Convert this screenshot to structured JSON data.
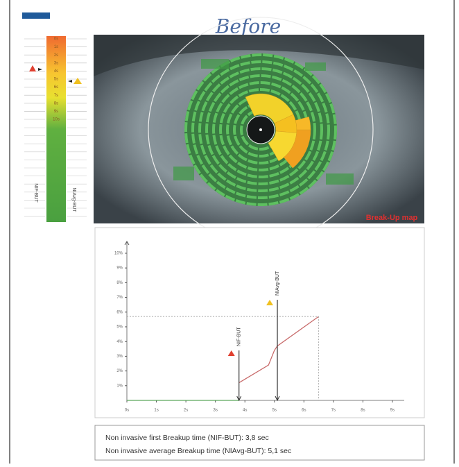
{
  "header": {
    "title": "Before"
  },
  "scale": {
    "labels": [
      "0s",
      "1s",
      "2s",
      "3s",
      "4s",
      "5s",
      "6s",
      "7s",
      "8s",
      "9s",
      "10s"
    ],
    "left_label": "NIF-BUT",
    "right_label": "NIAvg-BUT"
  },
  "map": {
    "label": "Break-Up map"
  },
  "chart_data": {
    "type": "line",
    "series": [
      {
        "name": "NIF-BUT",
        "color": "#5aa85a",
        "x": [
          0,
          3.8
        ],
        "values": [
          0,
          0
        ]
      },
      {
        "name": "NIAvg-BUT",
        "color": "#c86a6a",
        "x": [
          3.8,
          4.8,
          5.0,
          5.1,
          6.5
        ],
        "values": [
          1.2,
          2.4,
          3.4,
          3.7,
          5.7
        ]
      }
    ],
    "markers": [
      {
        "label": "NIF-BUT",
        "x": 3.8
      },
      {
        "label": "NIAvg-BUT",
        "x": 5.1
      }
    ],
    "xlim": [
      0,
      9.4
    ],
    "ylim": [
      0,
      10.8
    ],
    "xticks": [
      {
        "value": 0,
        "label": "0s"
      },
      {
        "value": 1,
        "label": "1s"
      },
      {
        "value": 2,
        "label": "2s"
      },
      {
        "value": 3,
        "label": "3s"
      },
      {
        "value": 4,
        "label": "4s"
      },
      {
        "value": 5,
        "label": "5s"
      },
      {
        "value": 6,
        "label": "6s"
      },
      {
        "value": 7,
        "label": "7s"
      },
      {
        "value": 8,
        "label": "8s"
      },
      {
        "value": 9,
        "label": "9s"
      }
    ],
    "yticks": [
      {
        "value": 1,
        "label": "1%"
      },
      {
        "value": 2,
        "label": "2%"
      },
      {
        "value": 3,
        "label": "3%"
      },
      {
        "value": 4,
        "label": "4%"
      },
      {
        "value": 5,
        "label": "5%"
      },
      {
        "value": 6,
        "label": "6%"
      },
      {
        "value": 7,
        "label": "7%"
      },
      {
        "value": 8,
        "label": "8%"
      },
      {
        "value": 9,
        "label": "9%"
      },
      {
        "value": 10,
        "label": "10%"
      }
    ]
  },
  "results": [
    "Non invasive first Breakup time (NIF-BUT): 3,8 sec",
    "Non invasive average Breakup time (NIAvg-BUT): 5,1 sec"
  ]
}
